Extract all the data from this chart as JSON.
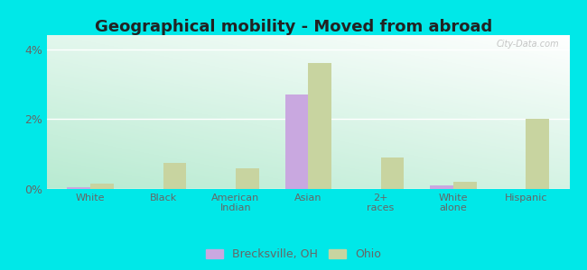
{
  "title": "Geographical mobility - Moved from abroad",
  "categories": [
    "White",
    "Black",
    "American\nIndian",
    "Asian",
    "2+\nraces",
    "White\nalone",
    "Hispanic"
  ],
  "brecksville": [
    0.05,
    0.0,
    0.0,
    2.7,
    0.0,
    0.1,
    0.0
  ],
  "ohio": [
    0.15,
    0.75,
    0.6,
    3.6,
    0.9,
    0.2,
    2.0
  ],
  "brecksville_color": "#c9a8e0",
  "ohio_color": "#c8d4a0",
  "ylim": [
    0,
    4.4
  ],
  "yticks": [
    0,
    2,
    4
  ],
  "ytick_labels": [
    "0%",
    "2%",
    "4%"
  ],
  "outer_background": "#00e8e8",
  "title_fontsize": 13,
  "title_color": "#222222",
  "legend_label_brecksville": "Brecksville, OH",
  "legend_label_ohio": "Ohio",
  "bar_width": 0.32,
  "watermark": "City-Data.com",
  "tick_color": "#666666",
  "grid_color": "#ffffff"
}
